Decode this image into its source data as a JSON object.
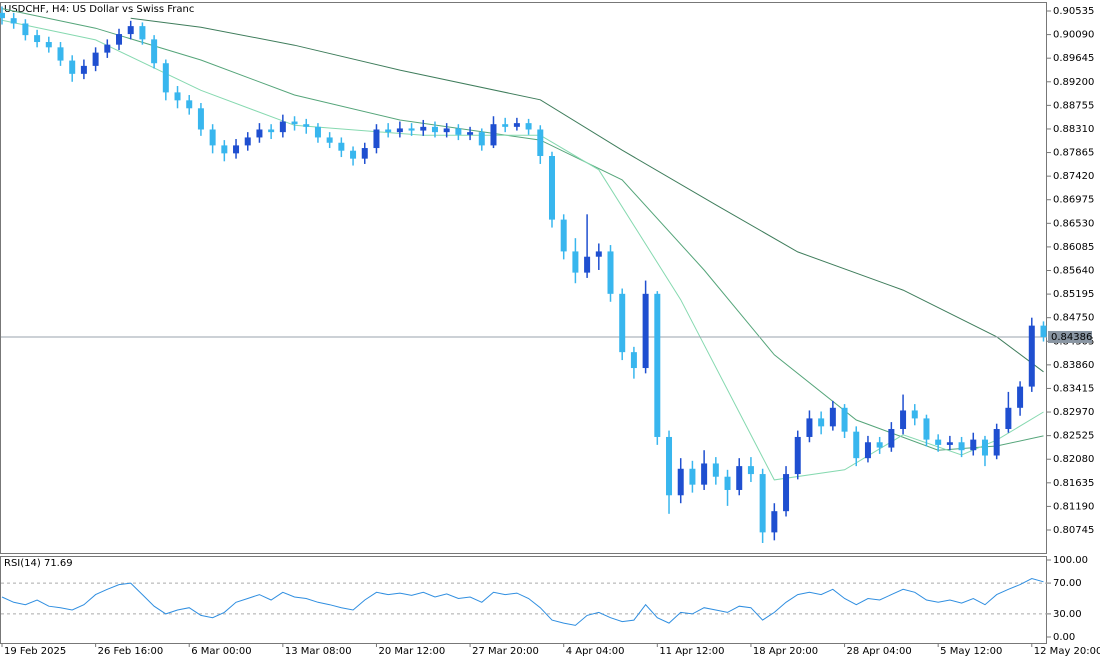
{
  "chart_data": {
    "type": "candlestick",
    "title": "USDCHF, H4:  US Dollar vs Swiss Franc",
    "up_color": "#1f4fd0",
    "down_color": "#38b6ee",
    "categories": [
      "19 Feb 2025",
      null,
      null,
      null,
      null,
      null,
      null,
      null,
      "26 Feb 16:00",
      null,
      null,
      null,
      null,
      null,
      null,
      null,
      "6 Mar 00:00",
      null,
      null,
      null,
      null,
      null,
      null,
      null,
      "13 Mar 08:00",
      null,
      null,
      null,
      null,
      null,
      null,
      null,
      "20 Mar 12:00",
      null,
      null,
      null,
      null,
      null,
      null,
      null,
      "27 Mar 20:00",
      null,
      null,
      null,
      null,
      null,
      null,
      null,
      "4 Apr 04:00",
      null,
      null,
      null,
      null,
      null,
      null,
      null,
      "11 Apr 12:00",
      null,
      null,
      null,
      null,
      null,
      null,
      null,
      "18 Apr 20:00",
      null,
      null,
      null,
      null,
      null,
      null,
      null,
      "28 Apr 04:00",
      null,
      null,
      null,
      null,
      null,
      null,
      null,
      "5 May 12:00",
      null,
      null,
      null,
      null,
      null,
      null,
      null,
      "12 May 20:00",
      null
    ],
    "candles": [
      [
        0.905,
        0.9062,
        0.9028,
        0.904
      ],
      [
        0.904,
        0.905,
        0.902,
        0.903
      ],
      [
        0.903,
        0.9038,
        0.8998,
        0.9008
      ],
      [
        0.9008,
        0.9018,
        0.8985,
        0.8995
      ],
      [
        0.8995,
        0.9005,
        0.8975,
        0.8985
      ],
      [
        0.8985,
        0.8995,
        0.895,
        0.896
      ],
      [
        0.896,
        0.897,
        0.892,
        0.8935
      ],
      [
        0.8935,
        0.8962,
        0.8925,
        0.895
      ],
      [
        0.895,
        0.8985,
        0.894,
        0.8975
      ],
      [
        0.8975,
        0.9,
        0.8965,
        0.899
      ],
      [
        0.899,
        0.902,
        0.898,
        0.901
      ],
      [
        0.901,
        0.9035,
        0.9,
        0.9025
      ],
      [
        0.9025,
        0.9032,
        0.899,
        0.9
      ],
      [
        0.9,
        0.9008,
        0.8945,
        0.8955
      ],
      [
        0.8955,
        0.8962,
        0.8885,
        0.89
      ],
      [
        0.89,
        0.8912,
        0.887,
        0.8885
      ],
      [
        0.8885,
        0.8895,
        0.8858,
        0.887
      ],
      [
        0.887,
        0.888,
        0.8818,
        0.883
      ],
      [
        0.883,
        0.884,
        0.8785,
        0.88
      ],
      [
        0.88,
        0.881,
        0.877,
        0.8785
      ],
      [
        0.8785,
        0.8812,
        0.8775,
        0.88
      ],
      [
        0.88,
        0.8825,
        0.879,
        0.8815
      ],
      [
        0.8815,
        0.8842,
        0.8805,
        0.883
      ],
      [
        0.883,
        0.884,
        0.8812,
        0.8825
      ],
      [
        0.8825,
        0.8858,
        0.8815,
        0.8845
      ],
      [
        0.8845,
        0.8855,
        0.8828,
        0.884
      ],
      [
        0.884,
        0.885,
        0.8822,
        0.8835
      ],
      [
        0.8835,
        0.8842,
        0.8805,
        0.8815
      ],
      [
        0.8815,
        0.8825,
        0.8795,
        0.8805
      ],
      [
        0.8805,
        0.8815,
        0.8778,
        0.879
      ],
      [
        0.879,
        0.8798,
        0.8762,
        0.8775
      ],
      [
        0.8775,
        0.8805,
        0.8765,
        0.8795
      ],
      [
        0.8795,
        0.884,
        0.8785,
        0.883
      ],
      [
        0.883,
        0.8842,
        0.8815,
        0.8825
      ],
      [
        0.8825,
        0.8845,
        0.8815,
        0.8832
      ],
      [
        0.8832,
        0.8842,
        0.8818,
        0.8828
      ],
      [
        0.8828,
        0.8848,
        0.8818,
        0.8835
      ],
      [
        0.8835,
        0.8845,
        0.8815,
        0.8825
      ],
      [
        0.8825,
        0.8842,
        0.8815,
        0.8832
      ],
      [
        0.8832,
        0.884,
        0.881,
        0.882
      ],
      [
        0.882,
        0.8835,
        0.881,
        0.8825
      ],
      [
        0.8825,
        0.8832,
        0.879,
        0.88
      ],
      [
        0.88,
        0.8855,
        0.8795,
        0.884
      ],
      [
        0.884,
        0.8852,
        0.8825,
        0.8835
      ],
      [
        0.8835,
        0.8852,
        0.8828,
        0.8842
      ],
      [
        0.8842,
        0.885,
        0.882,
        0.883
      ],
      [
        0.883,
        0.8838,
        0.8765,
        0.878
      ],
      [
        0.878,
        0.8788,
        0.8645,
        0.866
      ],
      [
        0.866,
        0.867,
        0.8585,
        0.86
      ],
      [
        0.86,
        0.8625,
        0.854,
        0.856
      ],
      [
        0.856,
        0.867,
        0.855,
        0.859
      ],
      [
        0.859,
        0.8615,
        0.8565,
        0.86
      ],
      [
        0.86,
        0.8612,
        0.8505,
        0.852
      ],
      [
        0.852,
        0.853,
        0.8395,
        0.841
      ],
      [
        0.841,
        0.842,
        0.836,
        0.838
      ],
      [
        0.838,
        0.8545,
        0.837,
        0.852
      ],
      [
        0.852,
        0.8525,
        0.8235,
        0.825
      ],
      [
        0.825,
        0.8262,
        0.8105,
        0.814
      ],
      [
        0.814,
        0.821,
        0.8125,
        0.819
      ],
      [
        0.819,
        0.8205,
        0.8145,
        0.816
      ],
      [
        0.816,
        0.8225,
        0.815,
        0.82
      ],
      [
        0.82,
        0.8212,
        0.816,
        0.8175
      ],
      [
        0.8175,
        0.8188,
        0.812,
        0.815
      ],
      [
        0.815,
        0.821,
        0.814,
        0.8195
      ],
      [
        0.8195,
        0.8212,
        0.8165,
        0.818
      ],
      [
        0.818,
        0.819,
        0.805,
        0.807
      ],
      [
        0.807,
        0.8125,
        0.8055,
        0.811
      ],
      [
        0.811,
        0.8195,
        0.81,
        0.818
      ],
      [
        0.818,
        0.8262,
        0.817,
        0.825
      ],
      [
        0.825,
        0.83,
        0.824,
        0.8285
      ],
      [
        0.8285,
        0.8298,
        0.8255,
        0.827
      ],
      [
        0.827,
        0.8318,
        0.8262,
        0.8305
      ],
      [
        0.8305,
        0.8312,
        0.8248,
        0.826
      ],
      [
        0.826,
        0.827,
        0.8195,
        0.821
      ],
      [
        0.821,
        0.8252,
        0.8202,
        0.824
      ],
      [
        0.824,
        0.825,
        0.8218,
        0.823
      ],
      [
        0.823,
        0.8278,
        0.8222,
        0.8265
      ],
      [
        0.8265,
        0.833,
        0.8255,
        0.83
      ],
      [
        0.83,
        0.8312,
        0.8272,
        0.8285
      ],
      [
        0.8285,
        0.8292,
        0.8232,
        0.8245
      ],
      [
        0.8245,
        0.8255,
        0.8222,
        0.8235
      ],
      [
        0.8235,
        0.8252,
        0.8225,
        0.824
      ],
      [
        0.824,
        0.825,
        0.8212,
        0.8225
      ],
      [
        0.8225,
        0.8258,
        0.8215,
        0.8245
      ],
      [
        0.8245,
        0.8252,
        0.8195,
        0.8215
      ],
      [
        0.8215,
        0.8275,
        0.8208,
        0.8265
      ],
      [
        0.8265,
        0.8335,
        0.8258,
        0.8305
      ],
      [
        0.8305,
        0.8355,
        0.829,
        0.8345
      ],
      [
        0.8345,
        0.8475,
        0.8335,
        0.846
      ],
      [
        0.846,
        0.8468,
        0.843,
        0.84386
      ]
    ],
    "series": [
      {
        "color": "#3f7d5c",
        "x": [
          11,
          17,
          25,
          34,
          46,
          53,
          61,
          68,
          77,
          85,
          89
        ],
        "values": [
          0.904,
          0.9023,
          0.8989,
          0.8942,
          0.8886,
          0.8791,
          0.8688,
          0.8599,
          0.8527,
          0.8439,
          0.8373
        ]
      },
      {
        "color": "#55a57a",
        "x": [
          0,
          8,
          17,
          25,
          34,
          46,
          53,
          60,
          66,
          73,
          80,
          85,
          89
        ],
        "values": [
          0.9058,
          0.9021,
          0.8961,
          0.8895,
          0.8848,
          0.881,
          0.8735,
          0.8565,
          0.8405,
          0.8282,
          0.8225,
          0.8233,
          0.8252
        ]
      },
      {
        "color": "#86d9b0",
        "x": [
          0,
          8,
          17,
          25,
          36,
          46,
          51,
          58,
          66,
          72,
          77,
          82,
          85,
          89
        ],
        "values": [
          0.9036,
          0.8999,
          0.8904,
          0.8838,
          0.8819,
          0.8819,
          0.8754,
          0.8509,
          0.8169,
          0.8188,
          0.8254,
          0.8216,
          0.8244,
          0.8297
        ]
      }
    ],
    "current_price": 0.84386,
    "xlim": [
      -0.17,
      89.3
    ],
    "ylim": [
      0.80311,
      0.90705
    ],
    "yticks": [
      0.90535,
      {
        "value": 0.9009,
        "label": "0.90090"
      },
      0.89645,
      {
        "value": 0.892,
        "label": "0.89200"
      },
      0.88755,
      {
        "value": 0.8831,
        "label": "0.88310"
      },
      0.87865,
      {
        "value": 0.8742,
        "label": "0.87420"
      },
      0.86975,
      {
        "value": 0.8653,
        "label": "0.86530"
      },
      0.86085,
      {
        "value": 0.8564,
        "label": "0.85640"
      },
      0.85195,
      {
        "value": 0.8475,
        "label": "0.84750"
      },
      0.84305,
      {
        "value": 0.8386,
        "label": "0.83860"
      },
      0.83415,
      {
        "value": 0.8297,
        "label": "0.82970"
      },
      0.82525,
      {
        "value": 0.8208,
        "label": "0.82080"
      },
      0.81635,
      {
        "value": 0.8119,
        "label": "0.81190"
      },
      0.80745
    ],
    "rsi": {
      "label": "RSI(14) 71.69",
      "color": "#2f8ee0",
      "values": [
        52,
        45,
        42,
        48,
        40,
        38,
        35,
        42,
        55,
        62,
        68,
        70,
        55,
        40,
        30,
        35,
        38,
        28,
        25,
        32,
        45,
        50,
        55,
        48,
        58,
        52,
        50,
        45,
        42,
        38,
        35,
        48,
        58,
        55,
        57,
        54,
        58,
        52,
        56,
        50,
        52,
        45,
        58,
        55,
        57,
        50,
        38,
        22,
        18,
        15,
        28,
        32,
        25,
        20,
        22,
        42,
        25,
        18,
        32,
        30,
        38,
        35,
        32,
        40,
        38,
        22,
        32,
        45,
        55,
        58,
        55,
        62,
        50,
        42,
        50,
        48,
        55,
        62,
        58,
        48,
        45,
        48,
        44,
        50,
        42,
        55,
        62,
        68,
        76,
        71.69
      ],
      "ylim": [
        -7.8,
        105.2
      ],
      "yticks": [
        {
          "value": 100,
          "label": "100.00"
        },
        {
          "value": 70,
          "label": "70.00"
        },
        {
          "value": 30,
          "label": "30.00"
        },
        {
          "value": 0,
          "label": "0.00"
        }
      ],
      "levels": [
        70,
        30
      ]
    }
  }
}
